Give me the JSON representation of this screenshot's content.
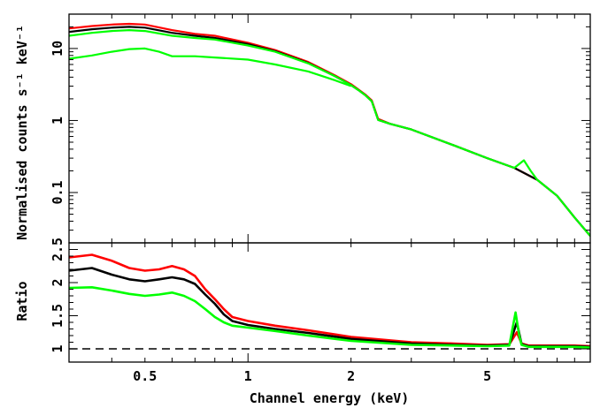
{
  "chart_data": [
    {
      "type": "line",
      "panel": "spectrum",
      "xscale": "log",
      "yscale": "log",
      "xlim": [
        0.3,
        10
      ],
      "ylim": [
        0.02,
        30
      ],
      "ylabel": "Normalised counts s⁻¹ keV⁻¹",
      "xlabel": "",
      "yticks": [
        {
          "value": 10,
          "label": "10"
        },
        {
          "value": 1,
          "label": "1"
        },
        {
          "value": 0.1,
          "label": "0.1"
        }
      ],
      "series": [
        {
          "color": "#ff0000",
          "x": [
            0.3,
            0.35,
            0.4,
            0.45,
            0.5,
            0.6,
            0.7,
            0.8,
            1.0,
            1.2,
            1.5,
            1.8,
            2.0,
            2.1,
            2.2,
            2.3,
            2.4,
            2.6,
            3,
            4,
            5,
            6,
            7,
            8,
            9,
            10
          ],
          "y": [
            19,
            20.5,
            21.5,
            22,
            21.5,
            18,
            16,
            15,
            12,
            9.5,
            6.5,
            4.2,
            3.2,
            2.7,
            2.3,
            1.9,
            1.05,
            0.9,
            0.75,
            0.45,
            0.3,
            0.22,
            0.15,
            0.09,
            0.045,
            0.025
          ]
        },
        {
          "color": "#000000",
          "x": [
            0.3,
            0.35,
            0.4,
            0.45,
            0.5,
            0.6,
            0.7,
            0.8,
            1.0,
            1.2,
            1.5,
            1.8,
            2.0,
            2.1,
            2.2,
            2.3,
            2.4,
            2.6,
            3,
            4,
            5,
            6,
            7,
            8,
            9,
            10
          ],
          "y": [
            17,
            18.5,
            19.5,
            20,
            19.5,
            16.5,
            15,
            14,
            11.5,
            9.2,
            6.3,
            4.1,
            3.1,
            2.65,
            2.25,
            1.85,
            1.02,
            0.9,
            0.75,
            0.45,
            0.3,
            0.22,
            0.15,
            0.09,
            0.045,
            0.025
          ]
        },
        {
          "color": "#00ff00",
          "x": [
            0.3,
            0.35,
            0.4,
            0.45,
            0.5,
            0.6,
            0.7,
            0.8,
            1.0,
            1.2,
            1.5,
            1.8,
            2.0,
            2.1,
            2.2,
            2.3,
            2.4,
            2.6,
            3,
            4,
            5,
            6,
            6.4,
            6.7,
            7,
            8,
            9,
            10
          ],
          "y": [
            15,
            16.5,
            17.5,
            18,
            17.5,
            15,
            14,
            13.3,
            11,
            9,
            6.2,
            4.1,
            3.1,
            2.65,
            2.25,
            1.85,
            1.02,
            0.9,
            0.75,
            0.45,
            0.3,
            0.22,
            0.28,
            0.2,
            0.15,
            0.09,
            0.045,
            0.025
          ]
        },
        {
          "color": "#00ff00",
          "x": [
            0.3,
            0.35,
            0.4,
            0.45,
            0.5,
            0.55,
            0.6,
            0.7,
            0.8,
            1.0,
            1.2,
            1.5,
            1.8,
            2.0
          ],
          "y": [
            7.2,
            8,
            9,
            9.8,
            10,
            9,
            7.8,
            7.8,
            7.5,
            7,
            6,
            4.8,
            3.6,
            3.0
          ]
        }
      ]
    },
    {
      "type": "line",
      "panel": "ratio",
      "xscale": "log",
      "xlim": [
        0.3,
        10
      ],
      "ylim": [
        0.8,
        2.6
      ],
      "ylabel": "Ratio",
      "xlabel": "Channel energy (keV)",
      "reference_line": {
        "y": 1,
        "style": "dashed"
      },
      "yticks": [
        {
          "value": 1,
          "label": "1"
        },
        {
          "value": 1.5,
          "label": "1.5"
        },
        {
          "value": 2,
          "label": "2"
        },
        {
          "value": 2.5,
          "label": "2.5"
        }
      ],
      "xticks": [
        {
          "value": 0.5,
          "label": "0.5"
        },
        {
          "value": 1,
          "label": "1"
        },
        {
          "value": 2,
          "label": "2"
        },
        {
          "value": 5,
          "label": "5"
        }
      ],
      "series": [
        {
          "color": "#ff0000",
          "x": [
            0.3,
            0.35,
            0.4,
            0.45,
            0.5,
            0.55,
            0.6,
            0.65,
            0.7,
            0.75,
            0.8,
            0.85,
            0.9,
            1.0,
            1.2,
            1.5,
            2,
            3,
            4,
            5,
            5.8,
            6.1,
            6.3,
            6.6,
            7,
            8,
            9,
            10
          ],
          "y": [
            2.38,
            2.42,
            2.33,
            2.22,
            2.18,
            2.2,
            2.25,
            2.2,
            2.1,
            1.9,
            1.75,
            1.6,
            1.48,
            1.42,
            1.35,
            1.28,
            1.18,
            1.1,
            1.08,
            1.06,
            1.07,
            1.25,
            1.08,
            1.05,
            1.05,
            1.05,
            1.05,
            1.04
          ]
        },
        {
          "color": "#000000",
          "x": [
            0.3,
            0.35,
            0.4,
            0.45,
            0.5,
            0.55,
            0.6,
            0.65,
            0.7,
            0.75,
            0.8,
            0.85,
            0.9,
            1.0,
            1.2,
            1.5,
            2,
            3,
            4,
            5,
            5.8,
            6.1,
            6.3,
            6.6,
            7,
            8,
            9,
            10
          ],
          "y": [
            2.18,
            2.22,
            2.12,
            2.05,
            2.02,
            2.05,
            2.08,
            2.05,
            1.98,
            1.82,
            1.68,
            1.52,
            1.42,
            1.36,
            1.3,
            1.24,
            1.15,
            1.08,
            1.06,
            1.05,
            1.06,
            1.4,
            1.07,
            1.04,
            1.04,
            1.04,
            1.04,
            1.03
          ]
        },
        {
          "color": "#00ff00",
          "x": [
            0.3,
            0.35,
            0.4,
            0.45,
            0.5,
            0.55,
            0.6,
            0.65,
            0.7,
            0.75,
            0.8,
            0.85,
            0.9,
            1.0,
            1.2,
            1.5,
            2,
            3,
            4,
            5,
            5.8,
            6.05,
            6.2,
            6.3,
            6.6,
            7,
            8,
            9,
            10
          ],
          "y": [
            1.92,
            1.93,
            1.88,
            1.83,
            1.8,
            1.82,
            1.85,
            1.8,
            1.72,
            1.6,
            1.48,
            1.4,
            1.35,
            1.32,
            1.27,
            1.2,
            1.12,
            1.06,
            1.05,
            1.04,
            1.05,
            1.55,
            1.2,
            1.06,
            1.03,
            1.03,
            1.03,
            1.03,
            1.02
          ]
        }
      ]
    }
  ]
}
